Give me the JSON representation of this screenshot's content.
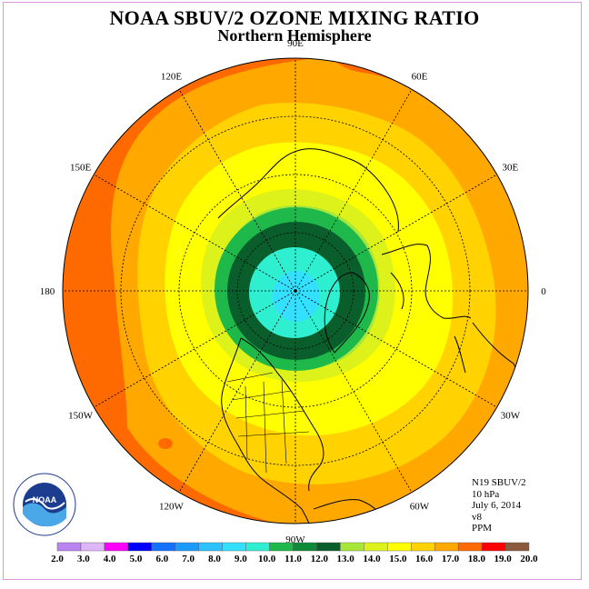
{
  "title": "NOAA SBUV/2 OZONE MIXING RATIO",
  "subtitle": "Northern Hemisphere",
  "longitude_labels": [
    {
      "text": "90E",
      "lon": 90
    },
    {
      "text": "60E",
      "lon": 60
    },
    {
      "text": "30E",
      "lon": 30
    },
    {
      "text": "0",
      "lon": 0
    },
    {
      "text": "30W",
      "lon": -30
    },
    {
      "text": "60W",
      "lon": -60
    },
    {
      "text": "90W",
      "lon": -90
    },
    {
      "text": "120W",
      "lon": -120
    },
    {
      "text": "150W",
      "lon": -150
    },
    {
      "text": "180",
      "lon": 180
    },
    {
      "text": "150E",
      "lon": 150
    },
    {
      "text": "120E",
      "lon": 120
    }
  ],
  "info": {
    "instrument": "N19 SBUV/2",
    "level": "10 hPa",
    "date": "July 6, 2014",
    "version": "v8",
    "units": "PPM"
  },
  "logo": {
    "text": "NOAA",
    "ring_text": "NATIONAL OCEANIC AND ATMOSPHERIC ADMINISTRATION · U.S. DEPARTMENT OF COMMERCE"
  },
  "colorbar": {
    "ticks": [
      "2.0",
      "3.0",
      "4.0",
      "5.0",
      "6.0",
      "7.0",
      "8.0",
      "9.0",
      "10.0",
      "11.0",
      "12.0",
      "13.0",
      "14.0",
      "15.0",
      "16.0",
      "17.0",
      "18.0",
      "19.0",
      "20.0"
    ],
    "colors": [
      "#b983f0",
      "#deb5f7",
      "#ff00ff",
      "#0000ff",
      "#1472ff",
      "#1c9bff",
      "#2bc2ff",
      "#34e0ff",
      "#2ef0d0",
      "#1fb84a",
      "#0f8a3a",
      "#0a5e2c",
      "#a8e63a",
      "#ddf21a",
      "#ffff00",
      "#ffd200",
      "#ffa800",
      "#ff6a00",
      "#ff0000",
      "#8b5a3c"
    ]
  },
  "map_fill_levels": [
    {
      "range": "17-18",
      "color": "#ff6a00"
    },
    {
      "range": "16-17",
      "color": "#ffa800"
    },
    {
      "range": "15-16",
      "color": "#ffd200"
    },
    {
      "range": "14-15",
      "color": "#ffff00"
    },
    {
      "range": "13-14",
      "color": "#ddf21a"
    },
    {
      "range": "12-13",
      "color": "#a8e63a"
    },
    {
      "range": "11-12",
      "color": "#1fb84a"
    },
    {
      "range": "10-11",
      "color": "#0a5e2c"
    },
    {
      "range": "9-10",
      "color": "#2ef0d0"
    },
    {
      "range": "8-9",
      "color": "#34e0ff"
    }
  ]
}
